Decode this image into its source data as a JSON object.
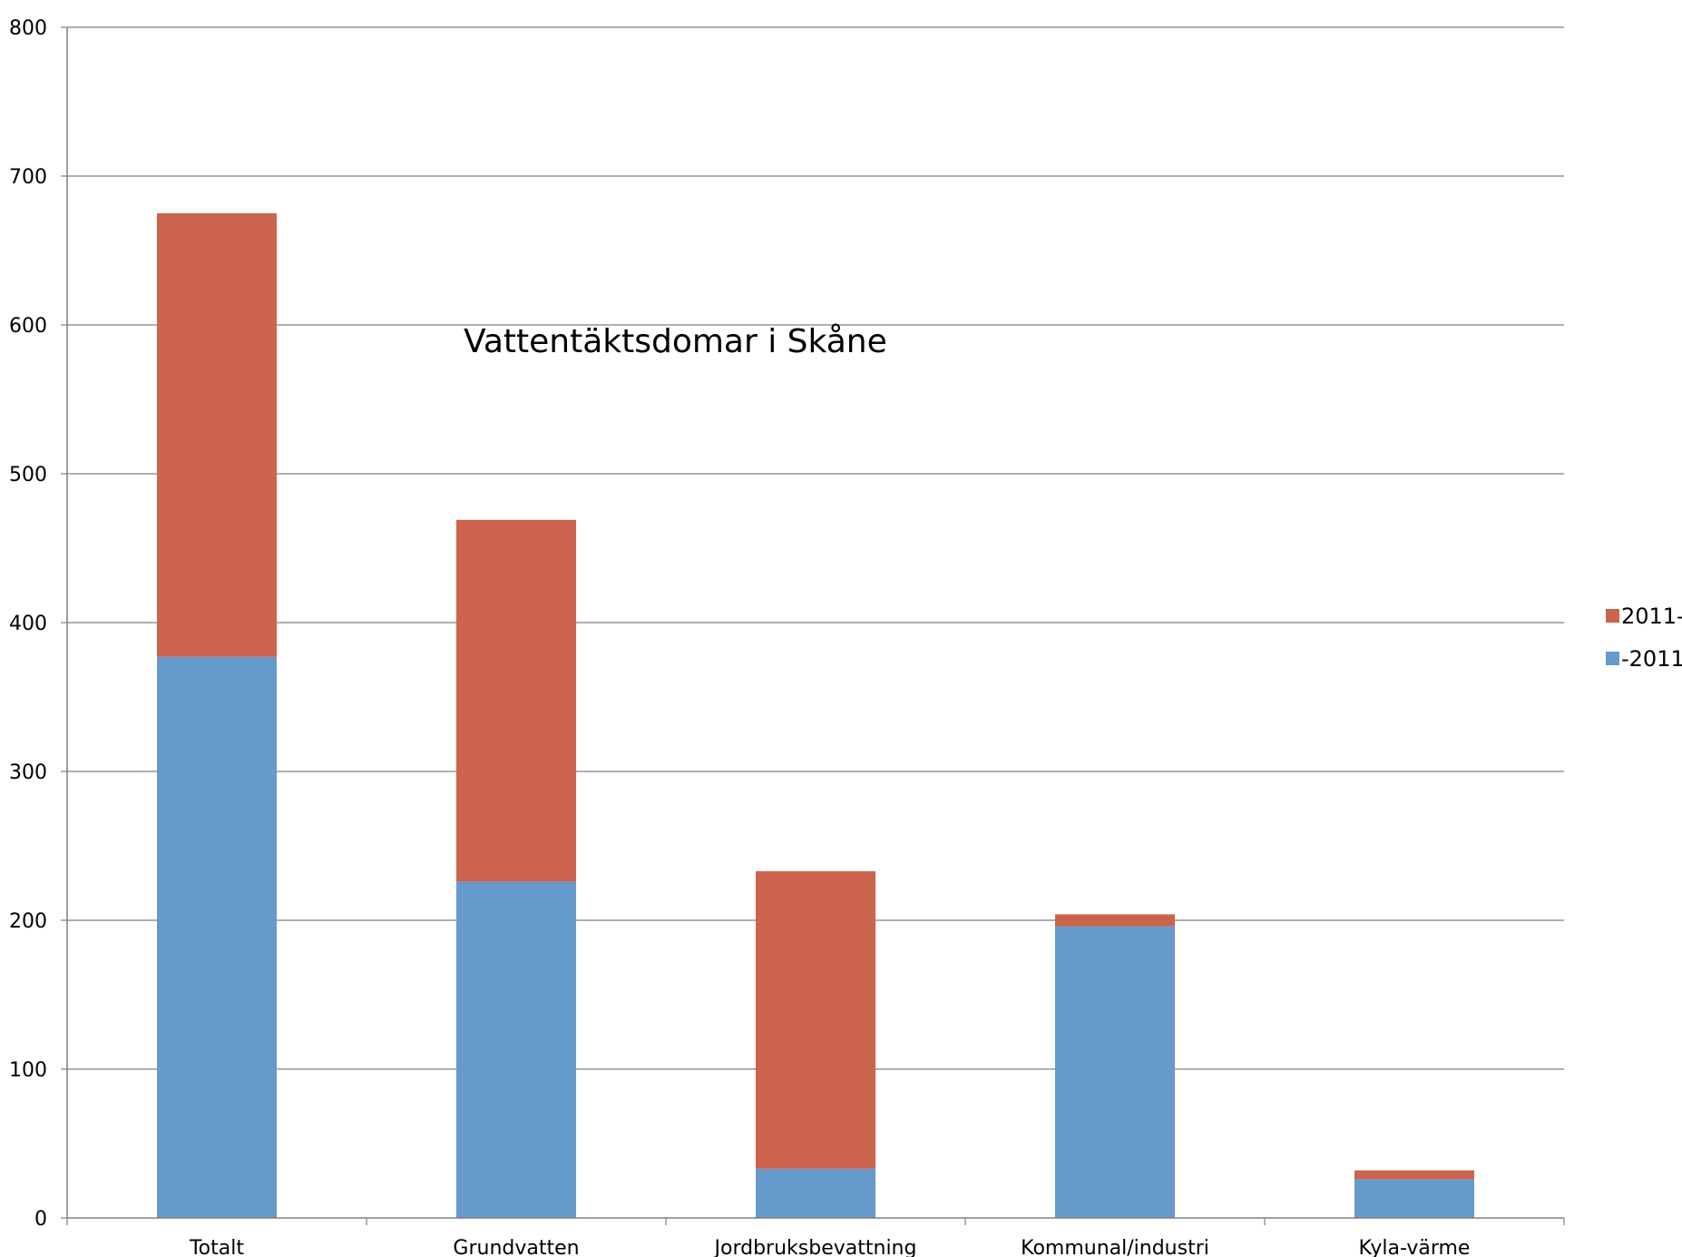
{
  "chart_data": {
    "type": "bar",
    "stacked": true,
    "title": "Vattentäktsdomar i Skåne",
    "xlabel": "",
    "ylabel": "",
    "ylim": [
      0,
      800
    ],
    "yticks": [
      0,
      100,
      200,
      300,
      400,
      500,
      600,
      700,
      800
    ],
    "grid": true,
    "legend_position": "right",
    "categories": [
      "Totalt",
      "Grundvatten",
      "Jordbruksbevattning",
      "Kommunal/industri",
      "Kyla-värme"
    ],
    "series": [
      {
        "name": "-2011",
        "color": "#6699cc",
        "values": [
          377,
          226,
          33,
          196,
          26
        ]
      },
      {
        "name": "2011-",
        "color": "#cc634c",
        "values": [
          298,
          243,
          200,
          8,
          6
        ]
      }
    ],
    "legend_order": [
      "2011-",
      "-2011"
    ]
  }
}
